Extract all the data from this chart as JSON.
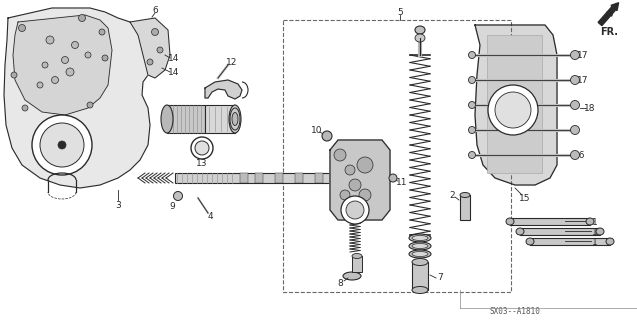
{
  "bg_color": "#ffffff",
  "diagram_ref": "SX03--A1810",
  "fr_label": "FR.",
  "line_color": "#2a2a2a",
  "gray_fill": "#c8c8c8",
  "light_fill": "#e8e8e8"
}
